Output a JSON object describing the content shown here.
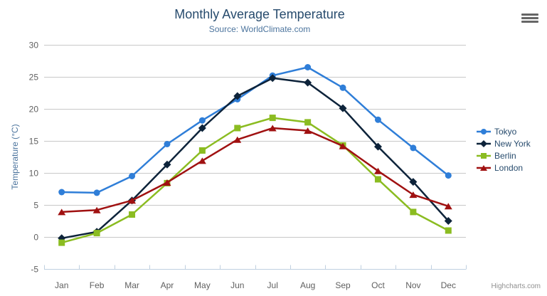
{
  "chart_data": {
    "type": "line",
    "title": "Monthly Average Temperature",
    "subtitle": "Source: WorldClimate.com",
    "categories": [
      "Jan",
      "Feb",
      "Mar",
      "Apr",
      "May",
      "Jun",
      "Jul",
      "Aug",
      "Sep",
      "Oct",
      "Nov",
      "Dec"
    ],
    "series": [
      {
        "name": "Tokyo",
        "color": "#2f7ed8",
        "marker": "circle",
        "values": [
          7.0,
          6.9,
          9.5,
          14.5,
          18.2,
          21.5,
          25.2,
          26.5,
          23.3,
          18.3,
          13.9,
          9.6
        ]
      },
      {
        "name": "New York",
        "color": "#0d233a",
        "marker": "diamond",
        "values": [
          -0.2,
          0.8,
          5.7,
          11.3,
          17.0,
          22.0,
          24.8,
          24.1,
          20.1,
          14.1,
          8.6,
          2.5
        ]
      },
      {
        "name": "Berlin",
        "color": "#8bbc21",
        "marker": "square",
        "values": [
          -0.9,
          0.6,
          3.5,
          8.4,
          13.5,
          17.0,
          18.6,
          17.9,
          14.3,
          9.0,
          3.9,
          1.0
        ]
      },
      {
        "name": "London",
        "color": "#a01111",
        "marker": "triangle",
        "values": [
          3.9,
          4.2,
          5.7,
          8.5,
          11.9,
          15.2,
          17.0,
          16.6,
          14.2,
          10.3,
          6.6,
          4.8
        ]
      }
    ],
    "xlabel": "",
    "ylabel": "Temperature (°C)",
    "ylim": [
      -5,
      30
    ],
    "yticks": [
      30,
      25,
      20,
      15,
      10,
      5,
      0,
      -5
    ],
    "grid": true,
    "legend_position": "right"
  },
  "credits": {
    "label": "Highcharts.com"
  },
  "export_menu": {
    "icon": "hamburger-menu"
  },
  "colors": {
    "title": "#274b6d",
    "subtitle": "#4d759e",
    "axis_label": "#606060",
    "axis_title": "#4d759e",
    "gridline": "#c8c8c8",
    "axis_line": "#c0d0e0",
    "legend_text": "#274b6d",
    "credits": "#909090",
    "background": "#ffffff"
  }
}
